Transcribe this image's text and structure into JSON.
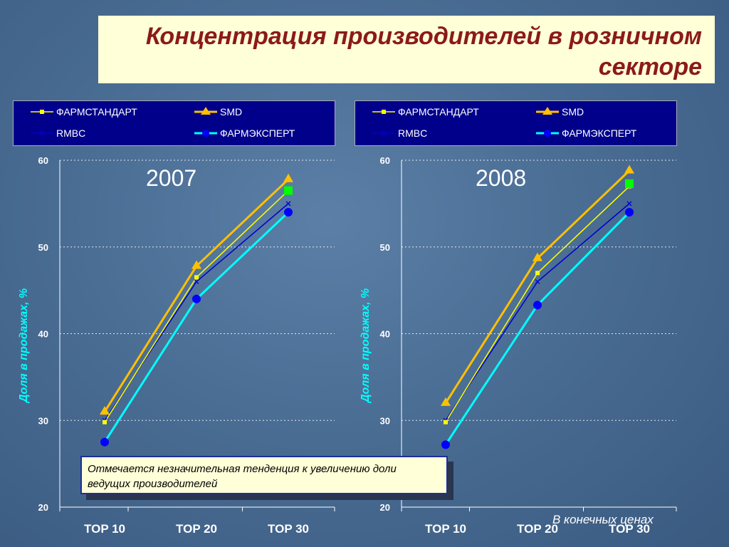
{
  "title": "Концентрация производителей в розничном секторе",
  "title_lines": [
    "Концентрация производителей в розничном",
    "секторе"
  ],
  "series_styles": [
    {
      "name": "ФАРМСТАНДАРТ",
      "color": "#ffff00",
      "marker": "square-small"
    },
    {
      "name": "SMD",
      "color": "#ffc000",
      "marker": "triangle"
    },
    {
      "name": "RMBC",
      "color": "#0000cd",
      "marker": "x"
    },
    {
      "name": "ФАРМЭКСПЕРТ",
      "color": "#00ffff",
      "marker": "circle"
    }
  ],
  "extra_marker_color": "#00ff00",
  "chart_data": [
    {
      "type": "line",
      "year_label": "2007",
      "categories": [
        "TOP 10",
        "TOP 20",
        "TOP 30"
      ],
      "ylabel": "Доля в продажах, %",
      "ylim": [
        20,
        60
      ],
      "yticks": [
        "20",
        "30",
        "40",
        "50",
        "60"
      ],
      "grid": true,
      "legend": "top",
      "series": [
        {
          "name": "ФАРМСТАНДАРТ",
          "values": [
            29.8,
            46.5,
            56.5
          ]
        },
        {
          "name": "SMD",
          "values": [
            31.0,
            47.8,
            57.8
          ]
        },
        {
          "name": "RMBC",
          "values": [
            30.0,
            46.0,
            55.0
          ]
        },
        {
          "name": "ФАРМЭКСПЕРТ",
          "values": [
            27.5,
            44.0,
            54.0
          ]
        }
      ],
      "extra_marker": {
        "category": "TOP 30",
        "value": 56.5
      }
    },
    {
      "type": "line",
      "year_label": "2008",
      "categories": [
        "TOP 10",
        "TOP 20",
        "TOP 30"
      ],
      "ylabel": "Доля в продажах, %",
      "ylim": [
        20,
        60
      ],
      "yticks": [
        "20",
        "30",
        "40",
        "50",
        "60"
      ],
      "grid": true,
      "legend": "top",
      "series": [
        {
          "name": "ФАРМСТАНДАРТ",
          "values": [
            29.8,
            47.0,
            57.0
          ]
        },
        {
          "name": "SMD",
          "values": [
            32.0,
            48.7,
            58.8
          ]
        },
        {
          "name": "RMBC",
          "values": [
            30.0,
            46.0,
            55.0
          ]
        },
        {
          "name": "ФАРМЭКСПЕРТ",
          "values": [
            27.2,
            43.3,
            54.0
          ]
        }
      ],
      "extra_marker": {
        "category": "TOP 30",
        "value": 57.3
      }
    }
  ],
  "note": "Отмечается незначительная тенденция к увеличению доли ведущих производителей",
  "footer": "В конечных ценах"
}
